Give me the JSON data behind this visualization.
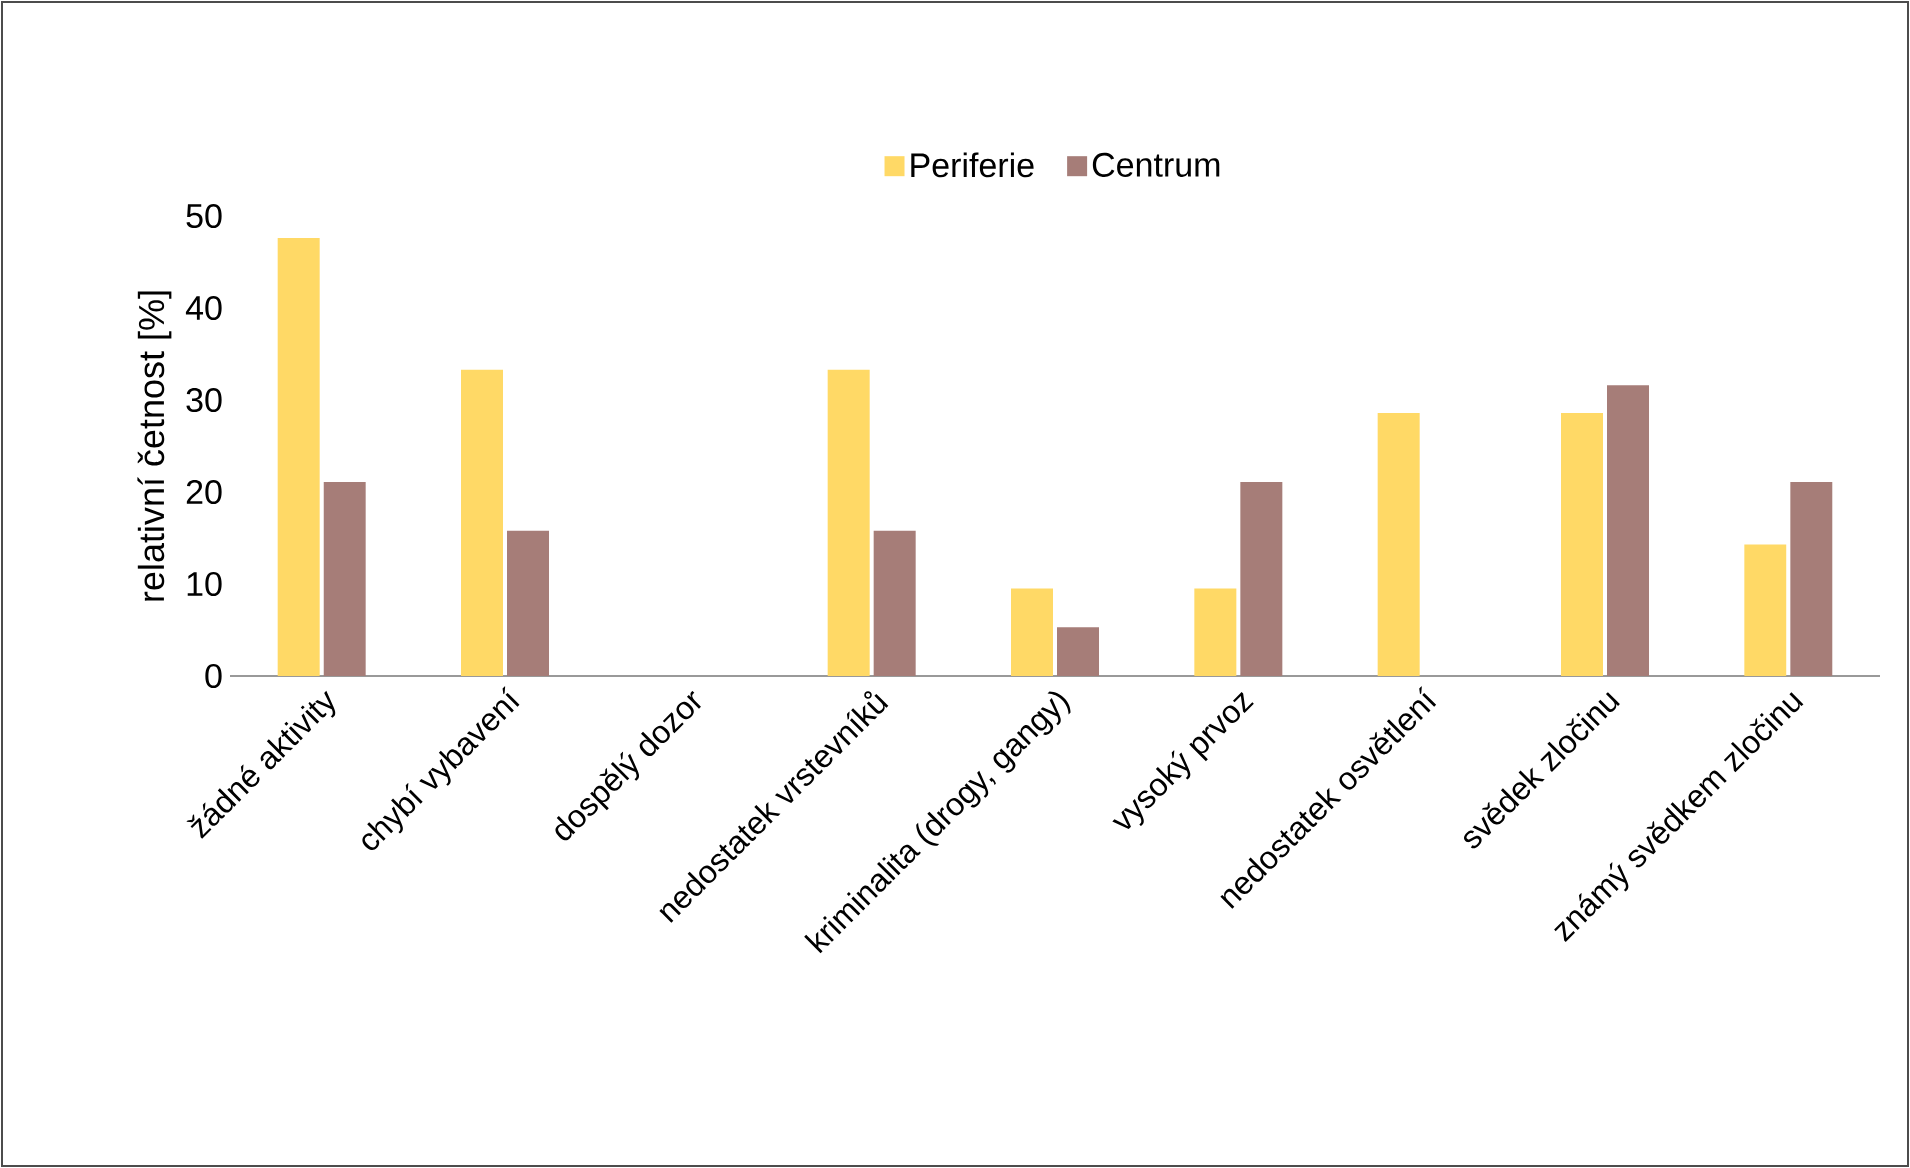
{
  "chart_data": {
    "type": "bar",
    "ylabel": "relativní četnost [%]",
    "categories": [
      "žádné aktivity",
      "chybí vybavení",
      "dospělý dozor",
      "nedostatek vrstevníků",
      "kriminalita (drogy, gangy)",
      "vysoký prvoz",
      "nedostatek osvětlení",
      "svědek zločinu",
      "známý svědkem zločinu"
    ],
    "series": [
      {
        "name": "Periferie",
        "color": "#ffd966",
        "values": [
          47.6,
          33.3,
          0,
          33.3,
          9.5,
          9.5,
          28.6,
          28.6,
          14.3
        ]
      },
      {
        "name": "Centrum",
        "color": "#a67d78",
        "values": [
          21.1,
          15.8,
          0,
          15.8,
          5.3,
          21.1,
          0,
          31.6,
          21.1
        ]
      }
    ],
    "ylim": [
      0,
      50
    ],
    "yticks": [
      0,
      10,
      20,
      30,
      40,
      50
    ],
    "grid": false,
    "legend": "top"
  }
}
